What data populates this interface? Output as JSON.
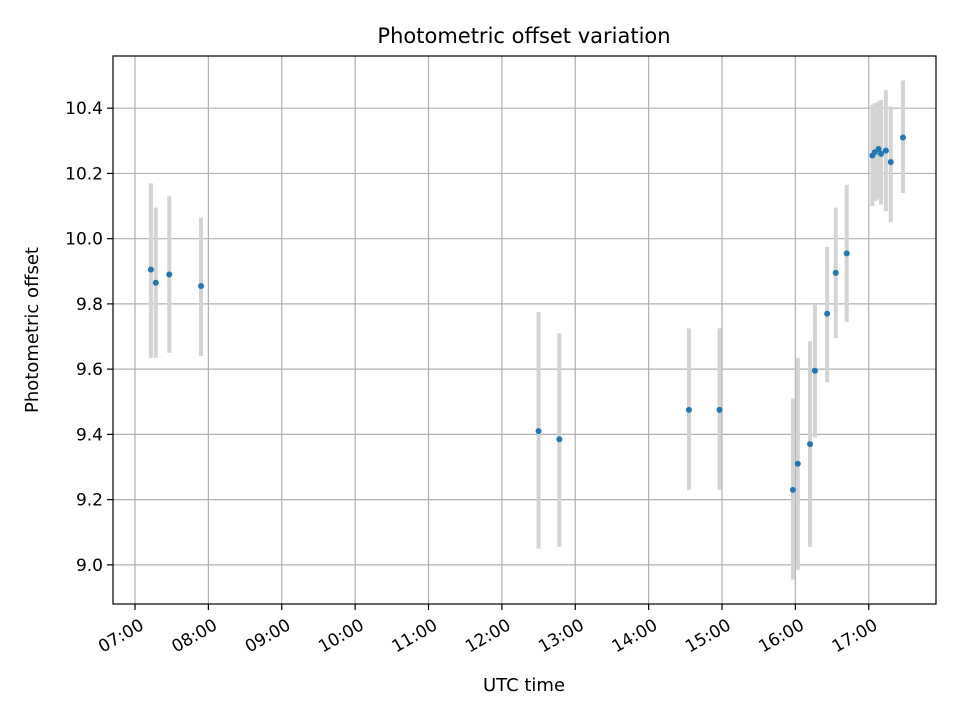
{
  "chart_data": {
    "type": "scatter",
    "title": "Photometric offset variation",
    "xlabel": "UTC time",
    "ylabel": "Photometric offset",
    "x_ticks": [
      "07:00",
      "08:00",
      "09:00",
      "10:00",
      "11:00",
      "12:00",
      "13:00",
      "14:00",
      "15:00",
      "16:00",
      "17:00"
    ],
    "y_ticks": [
      "9.0",
      "9.2",
      "9.4",
      "9.6",
      "9.8",
      "10.0",
      "10.2",
      "10.4"
    ],
    "xlim": [
      "06:42",
      "17:55"
    ],
    "ylim": [
      8.88,
      10.56
    ],
    "grid": true,
    "colors": {
      "point": "#1f77b4",
      "errorbar": "#d3d3d3",
      "grid": "#b0b0b0"
    },
    "points": [
      {
        "x": "07:13",
        "y": 9.905,
        "yerr_low": 9.635,
        "yerr_high": 10.17
      },
      {
        "x": "07:17",
        "y": 9.865,
        "yerr_low": 9.635,
        "yerr_high": 10.095
      },
      {
        "x": "07:28",
        "y": 9.89,
        "yerr_low": 9.65,
        "yerr_high": 10.13
      },
      {
        "x": "07:54",
        "y": 9.855,
        "yerr_low": 9.64,
        "yerr_high": 10.065
      },
      {
        "x": "12:30",
        "y": 9.41,
        "yerr_low": 9.05,
        "yerr_high": 9.775
      },
      {
        "x": "12:47",
        "y": 9.385,
        "yerr_low": 9.055,
        "yerr_high": 9.71
      },
      {
        "x": "14:33",
        "y": 9.475,
        "yerr_low": 9.23,
        "yerr_high": 9.725
      },
      {
        "x": "14:58",
        "y": 9.475,
        "yerr_low": 9.23,
        "yerr_high": 9.725
      },
      {
        "x": "15:58",
        "y": 9.23,
        "yerr_low": 8.955,
        "yerr_high": 9.51
      },
      {
        "x": "16:02",
        "y": 9.31,
        "yerr_low": 8.985,
        "yerr_high": 9.635
      },
      {
        "x": "16:12",
        "y": 9.37,
        "yerr_low": 9.055,
        "yerr_high": 9.685
      },
      {
        "x": "16:16",
        "y": 9.595,
        "yerr_low": 9.39,
        "yerr_high": 9.8
      },
      {
        "x": "16:26",
        "y": 9.77,
        "yerr_low": 9.56,
        "yerr_high": 9.975
      },
      {
        "x": "16:33",
        "y": 9.895,
        "yerr_low": 9.695,
        "yerr_high": 10.095
      },
      {
        "x": "16:42",
        "y": 9.955,
        "yerr_low": 9.745,
        "yerr_high": 10.165
      },
      {
        "x": "17:03",
        "y": 10.255,
        "yerr_low": 10.1,
        "yerr_high": 10.41
      },
      {
        "x": "17:05",
        "y": 10.265,
        "yerr_low": 10.115,
        "yerr_high": 10.415
      },
      {
        "x": "17:08",
        "y": 10.275,
        "yerr_low": 10.12,
        "yerr_high": 10.42
      },
      {
        "x": "17:10",
        "y": 10.26,
        "yerr_low": 10.105,
        "yerr_high": 10.425
      },
      {
        "x": "17:14",
        "y": 10.27,
        "yerr_low": 10.085,
        "yerr_high": 10.455
      },
      {
        "x": "17:18",
        "y": 10.235,
        "yerr_low": 10.05,
        "yerr_high": 10.405
      },
      {
        "x": "17:28",
        "y": 10.31,
        "yerr_low": 10.14,
        "yerr_high": 10.485
      }
    ]
  }
}
